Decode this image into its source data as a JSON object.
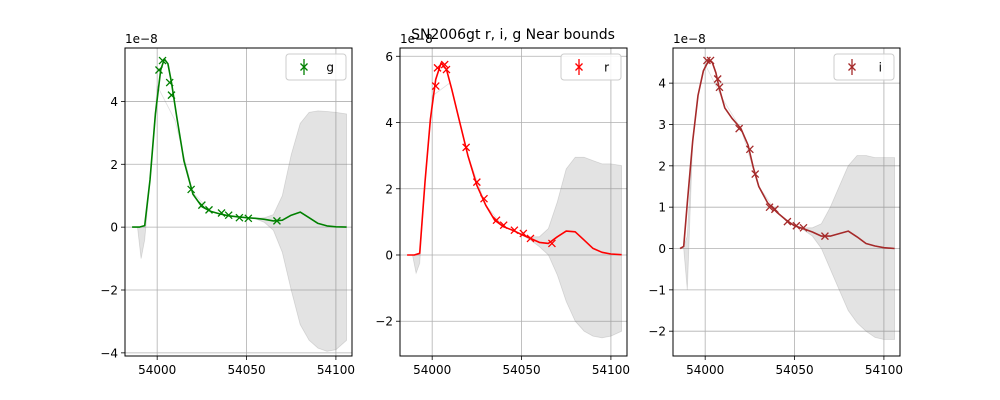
{
  "figure_title": "SN2006gt  r, i, g Near bounds",
  "chart_data": [
    {
      "type": "line",
      "band": "g",
      "color": "#008000",
      "legend_label": "g",
      "legend_position": "upper right",
      "offset_text": "1e−8",
      "grid": true,
      "xlim": [
        53982,
        54109
      ],
      "ylim": [
        -4.1,
        5.7
      ],
      "xticks": [
        54000,
        54050,
        54100
      ],
      "yticks": [
        -4,
        -2,
        0,
        2,
        4
      ],
      "model_x": [
        53986,
        53990,
        53993,
        53996,
        53999,
        54002,
        54004,
        54006,
        54008,
        54011,
        54015,
        54020,
        54025,
        54030,
        54035,
        54040,
        54045,
        54050,
        54055,
        54060,
        54065,
        54070,
        54075,
        54080,
        54085,
        54090,
        54095,
        54100,
        54106
      ],
      "model_y": [
        0,
        0,
        0.05,
        1.5,
        3.6,
        5.0,
        5.35,
        5.2,
        4.6,
        3.5,
        2.1,
        1.05,
        0.65,
        0.5,
        0.42,
        0.36,
        0.33,
        0.3,
        0.28,
        0.25,
        0.2,
        0.22,
        0.38,
        0.48,
        0.3,
        0.12,
        0.04,
        0.01,
        0
      ],
      "band_x": [
        53986,
        53989,
        53991,
        53993,
        53996,
        54000,
        54010,
        54020,
        54030,
        54040,
        54050,
        54055,
        54060,
        54065,
        54070,
        54075,
        54080,
        54085,
        54090,
        54095,
        54100,
        54106
      ],
      "band_upper": [
        0,
        0,
        0.0,
        0.05,
        1.5,
        4.5,
        3.4,
        1.1,
        0.5,
        0.36,
        0.3,
        0.28,
        0.3,
        0.4,
        1.0,
        2.3,
        3.3,
        3.65,
        3.7,
        3.68,
        3.65,
        3.6
      ],
      "band_lower": [
        0,
        0,
        -1.0,
        -0.4,
        1.5,
        4.5,
        3.4,
        1.1,
        0.5,
        0.36,
        0.3,
        0.27,
        0.15,
        -0.1,
        -0.8,
        -2.0,
        -3.1,
        -3.6,
        -3.85,
        -3.95,
        -3.9,
        -3.6
      ],
      "obs_x": [
        54001,
        54003,
        54007,
        54008,
        54019,
        54025,
        54029,
        54036,
        54040,
        54046,
        54051,
        54067
      ],
      "obs_y": [
        5.0,
        5.3,
        4.6,
        4.2,
        1.2,
        0.7,
        0.55,
        0.45,
        0.38,
        0.3,
        0.28,
        0.2
      ]
    },
    {
      "type": "line",
      "band": "r",
      "color": "#ff0000",
      "legend_label": "r",
      "legend_position": "upper right",
      "offset_text": "1e−8",
      "grid": true,
      "xlim": [
        53982,
        54109
      ],
      "ylim": [
        -3.05,
        6.25
      ],
      "xticks": [
        54000,
        54050,
        54100
      ],
      "yticks": [
        -2,
        0,
        2,
        4,
        6
      ],
      "model_x": [
        53986,
        53990,
        53993,
        53996,
        53999,
        54002,
        54005,
        54008,
        54011,
        54015,
        54020,
        54025,
        54030,
        54035,
        54040,
        54045,
        54050,
        54055,
        54060,
        54065,
        54070,
        54075,
        54080,
        54085,
        54090,
        54095,
        54100,
        54106
      ],
      "model_y": [
        0,
        0,
        0.05,
        2.2,
        4.1,
        5.3,
        5.8,
        5.6,
        5.0,
        4.1,
        3.0,
        2.1,
        1.5,
        1.05,
        0.85,
        0.75,
        0.62,
        0.5,
        0.38,
        0.35,
        0.55,
        0.72,
        0.7,
        0.45,
        0.2,
        0.08,
        0.03,
        0.01
      ],
      "band_x": [
        53986,
        53989,
        53991,
        53993,
        53996,
        54000,
        54010,
        54020,
        54030,
        54040,
        54050,
        54055,
        54060,
        54065,
        54070,
        54075,
        54080,
        54085,
        54090,
        54095,
        54100,
        54106
      ],
      "band_upper": [
        0,
        0,
        0.0,
        0.05,
        2.2,
        4.8,
        5.2,
        3.0,
        1.5,
        0.85,
        0.62,
        0.55,
        0.55,
        0.8,
        1.6,
        2.6,
        2.95,
        2.95,
        2.85,
        2.75,
        2.75,
        2.7
      ],
      "band_lower": [
        0,
        0,
        -0.55,
        -0.25,
        2.2,
        4.8,
        5.2,
        3.0,
        1.5,
        0.85,
        0.62,
        0.45,
        0.25,
        0.0,
        -0.6,
        -1.4,
        -2.0,
        -2.3,
        -2.45,
        -2.5,
        -2.45,
        -2.3
      ],
      "obs_x": [
        54002,
        54003,
        54007,
        54008,
        54019,
        54025,
        54029,
        54036,
        54040,
        54046,
        54051,
        54055,
        54067
      ],
      "obs_y": [
        5.1,
        5.65,
        5.75,
        5.6,
        3.25,
        2.2,
        1.7,
        1.05,
        0.9,
        0.75,
        0.65,
        0.5,
        0.35
      ]
    },
    {
      "type": "line",
      "band": "i",
      "color": "#a52a2a",
      "legend_label": "i",
      "legend_position": "upper right",
      "offset_text": "1e−8",
      "grid": true,
      "xlim": [
        53982,
        54109
      ],
      "ylim": [
        -2.6,
        4.85
      ],
      "xticks": [
        54000,
        54050,
        54100
      ],
      "yticks": [
        -2,
        -1,
        0,
        1,
        2,
        3,
        4
      ],
      "model_x": [
        53986,
        53988,
        53990,
        53993,
        53996,
        53999,
        54002,
        54004,
        54006,
        54008,
        54011,
        54015,
        54020,
        54024,
        54027,
        54030,
        54035,
        54040,
        54045,
        54050,
        54055,
        54060,
        54065,
        54070,
        54075,
        54080,
        54085,
        54090,
        54095,
        54100,
        54106
      ],
      "model_y": [
        0,
        0.05,
        1.1,
        2.6,
        3.7,
        4.3,
        4.55,
        4.5,
        4.25,
        3.85,
        3.4,
        3.15,
        2.9,
        2.5,
        1.95,
        1.5,
        1.1,
        0.88,
        0.7,
        0.55,
        0.48,
        0.4,
        0.3,
        0.3,
        0.36,
        0.42,
        0.28,
        0.12,
        0.06,
        0.02,
        0
      ],
      "band_x": [
        53986,
        53988,
        53990,
        53993,
        53996,
        54000,
        54010,
        54020,
        54030,
        54040,
        54050,
        54055,
        54060,
        54065,
        54070,
        54075,
        54080,
        54085,
        54090,
        54095,
        54100,
        54106
      ],
      "band_upper": [
        0,
        0.05,
        0.3,
        2.6,
        3.7,
        4.45,
        3.6,
        2.9,
        1.5,
        0.88,
        0.55,
        0.5,
        0.5,
        0.6,
        1.0,
        1.5,
        2.0,
        2.25,
        2.25,
        2.2,
        2.2,
        2.2
      ],
      "band_lower": [
        0,
        0.0,
        -1.0,
        2.6,
        3.7,
        4.45,
        3.6,
        2.9,
        1.5,
        0.88,
        0.55,
        0.45,
        0.3,
        0.0,
        -0.5,
        -1.0,
        -1.5,
        -1.8,
        -2.0,
        -2.15,
        -2.2,
        -2.2
      ],
      "obs_x": [
        54001,
        54003,
        54007,
        54008,
        54019,
        54025,
        54028,
        54036,
        54039,
        54046,
        54051,
        54055,
        54067
      ],
      "obs_y": [
        4.55,
        4.55,
        4.1,
        3.9,
        2.9,
        2.4,
        1.8,
        1.0,
        0.95,
        0.65,
        0.55,
        0.5,
        0.3
      ]
    }
  ]
}
